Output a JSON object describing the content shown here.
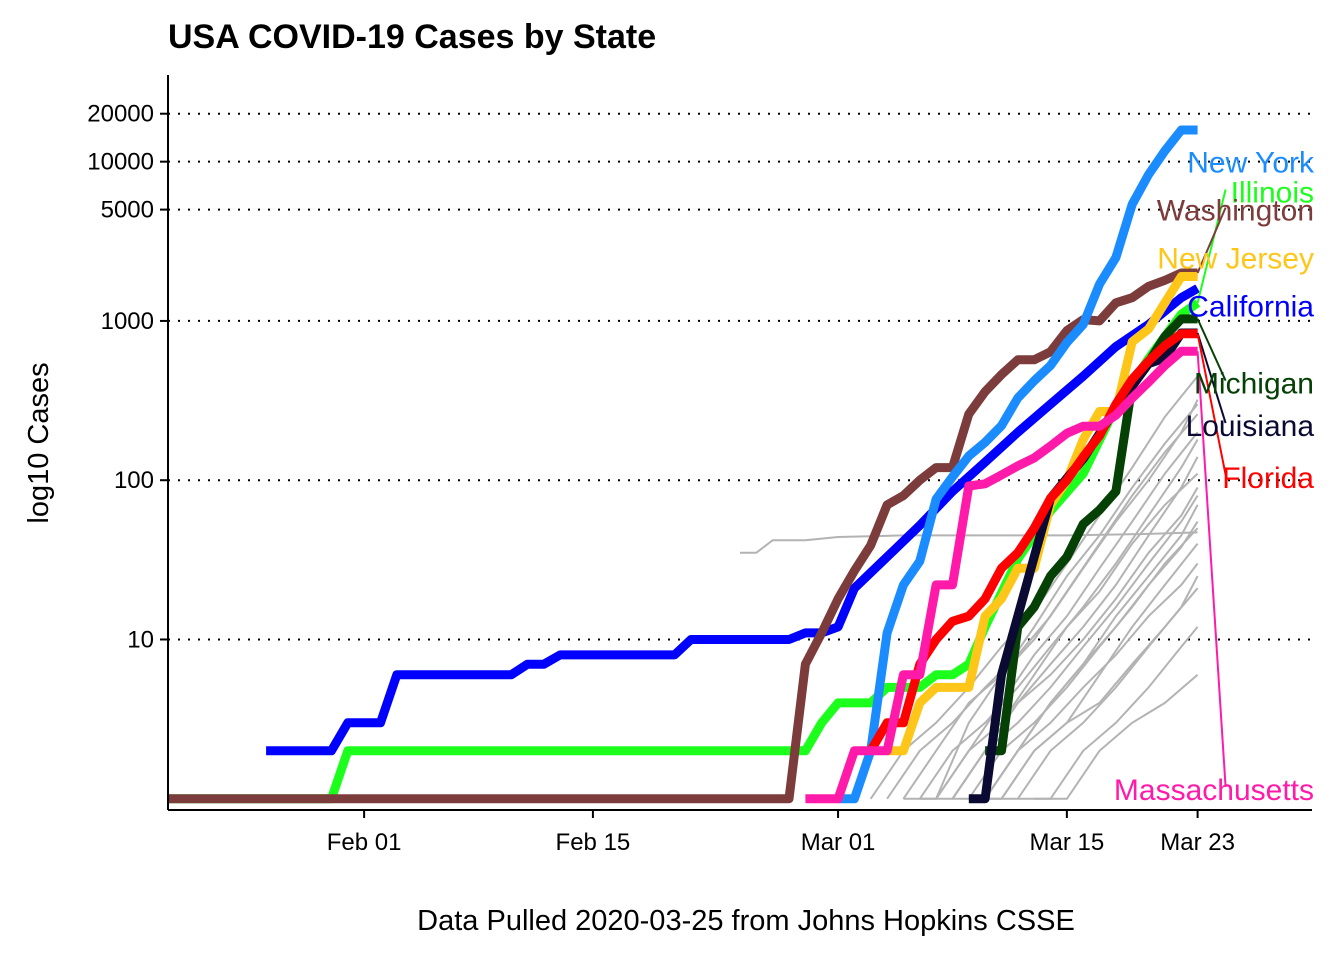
{
  "chart_data": {
    "type": "line",
    "title": "USA COVID-19 Cases by State",
    "xlabel": "Data Pulled 2020-03-25 from Johns Hopkins CSSE",
    "ylabel": "log10 Cases",
    "y_scale": "log10",
    "ylim": [
      0.85,
      35000
    ],
    "xlim": [
      "2020-01-20",
      "2020-03-30"
    ],
    "y_ticks": [
      {
        "value": 10,
        "label": "10"
      },
      {
        "value": 100,
        "label": "100"
      },
      {
        "value": 1000,
        "label": "1000"
      },
      {
        "value": 5000,
        "label": "5000"
      },
      {
        "value": 10000,
        "label": "10000"
      },
      {
        "value": 20000,
        "label": "20000"
      }
    ],
    "x_ticks": [
      {
        "value": "2020-02-01",
        "label": "Feb 01"
      },
      {
        "value": "2020-02-15",
        "label": "Feb 15"
      },
      {
        "value": "2020-03-01",
        "label": "Mar 01"
      },
      {
        "value": "2020-03-15",
        "label": "Mar 15"
      },
      {
        "value": "2020-03-23",
        "label": "Mar 23"
      }
    ],
    "grid": "horizontal dotted at y ticks",
    "legend": "direct labels at right end of lines",
    "background_series_color": "#b3b3b3",
    "background_series": [
      {
        "x": [
          "2020-02-24",
          "2020-02-25",
          "2020-02-26",
          "2020-02-28",
          "2020-03-01",
          "2020-03-05",
          "2020-03-10",
          "2020-03-15",
          "2020-03-20",
          "2020-03-23"
        ],
        "values": [
          35,
          35,
          42,
          42,
          44,
          45,
          45,
          45,
          46,
          47
        ]
      },
      {
        "x": [
          "2020-03-03",
          "2020-03-05",
          "2020-03-07",
          "2020-03-09",
          "2020-03-11",
          "2020-03-13",
          "2020-03-15",
          "2020-03-17",
          "2020-03-19",
          "2020-03-21",
          "2020-03-23"
        ],
        "values": [
          1,
          2,
          3,
          5,
          9,
          15,
          30,
          60,
          120,
          250,
          450
        ]
      },
      {
        "x": [
          "2020-03-04",
          "2020-03-06",
          "2020-03-08",
          "2020-03-10",
          "2020-03-12",
          "2020-03-14",
          "2020-03-16",
          "2020-03-18",
          "2020-03-20",
          "2020-03-22",
          "2020-03-23"
        ],
        "values": [
          1,
          2,
          3,
          5,
          8,
          14,
          28,
          55,
          100,
          200,
          320
        ]
      },
      {
        "x": [
          "2020-03-05",
          "2020-03-07",
          "2020-03-09",
          "2020-03-11",
          "2020-03-13",
          "2020-03-15",
          "2020-03-17",
          "2020-03-19",
          "2020-03-21",
          "2020-03-23"
        ],
        "values": [
          1,
          2,
          4,
          6,
          10,
          20,
          40,
          80,
          150,
          260
        ]
      },
      {
        "x": [
          "2020-03-06",
          "2020-03-08",
          "2020-03-10",
          "2020-03-12",
          "2020-03-14",
          "2020-03-16",
          "2020-03-18",
          "2020-03-20",
          "2020-03-22",
          "2020-03-23"
        ],
        "values": [
          1,
          2,
          3,
          5,
          9,
          16,
          30,
          60,
          120,
          180
        ]
      },
      {
        "x": [
          "2020-03-06",
          "2020-03-08",
          "2020-03-10",
          "2020-03-12",
          "2020-03-14",
          "2020-03-16",
          "2020-03-18",
          "2020-03-20",
          "2020-03-22",
          "2020-03-23"
        ],
        "values": [
          1,
          1,
          2,
          4,
          7,
          12,
          22,
          45,
          90,
          140
        ]
      },
      {
        "x": [
          "2020-03-07",
          "2020-03-09",
          "2020-03-11",
          "2020-03-13",
          "2020-03-15",
          "2020-03-17",
          "2020-03-19",
          "2020-03-21",
          "2020-03-23"
        ],
        "values": [
          1,
          2,
          3,
          6,
          12,
          20,
          40,
          70,
          110
        ]
      },
      {
        "x": [
          "2020-03-08",
          "2020-03-10",
          "2020-03-12",
          "2020-03-14",
          "2020-03-16",
          "2020-03-18",
          "2020-03-20",
          "2020-03-22",
          "2020-03-23"
        ],
        "values": [
          1,
          2,
          4,
          6,
          10,
          18,
          35,
          60,
          90
        ]
      },
      {
        "x": [
          "2020-03-08",
          "2020-03-10",
          "2020-03-12",
          "2020-03-14",
          "2020-03-16",
          "2020-03-18",
          "2020-03-20",
          "2020-03-22",
          "2020-03-23"
        ],
        "values": [
          1,
          1,
          2,
          4,
          7,
          14,
          25,
          45,
          70
        ]
      },
      {
        "x": [
          "2020-03-09",
          "2020-03-11",
          "2020-03-13",
          "2020-03-15",
          "2020-03-17",
          "2020-03-19",
          "2020-03-21",
          "2020-03-23"
        ],
        "values": [
          1,
          2,
          3,
          5,
          9,
          16,
          30,
          50
        ]
      },
      {
        "x": [
          "2020-03-09",
          "2020-03-11",
          "2020-03-13",
          "2020-03-15",
          "2020-03-17",
          "2020-03-19",
          "2020-03-21",
          "2020-03-23"
        ],
        "values": [
          1,
          1,
          2,
          3,
          6,
          12,
          22,
          40
        ]
      },
      {
        "x": [
          "2020-03-10",
          "2020-03-12",
          "2020-03-14",
          "2020-03-16",
          "2020-03-18",
          "2020-03-20",
          "2020-03-22",
          "2020-03-23"
        ],
        "values": [
          1,
          2,
          3,
          5,
          8,
          14,
          22,
          30
        ]
      },
      {
        "x": [
          "2020-03-10",
          "2020-03-12",
          "2020-03-14",
          "2020-03-16",
          "2020-03-18",
          "2020-03-20",
          "2020-03-22",
          "2020-03-23"
        ],
        "values": [
          1,
          1,
          2,
          3,
          5,
          9,
          16,
          25
        ]
      },
      {
        "x": [
          "2020-03-11",
          "2020-03-13",
          "2020-03-15",
          "2020-03-17",
          "2020-03-19",
          "2020-03-21",
          "2020-03-23"
        ],
        "values": [
          1,
          2,
          3,
          4,
          7,
          12,
          21
        ]
      },
      {
        "x": [
          "2020-03-12",
          "2020-03-14",
          "2020-03-16",
          "2020-03-18",
          "2020-03-20",
          "2020-03-22",
          "2020-03-23"
        ],
        "values": [
          1,
          1,
          2,
          3,
          5,
          9,
          12
        ]
      },
      {
        "x": [
          "2020-03-13",
          "2020-03-15",
          "2020-03-17",
          "2020-03-19",
          "2020-03-21",
          "2020-03-23"
        ],
        "values": [
          1,
          1,
          2,
          3,
          4,
          6
        ]
      },
      {
        "x": [
          "2020-03-07",
          "2020-03-09",
          "2020-03-11",
          "2020-03-13",
          "2020-03-15",
          "2020-03-17",
          "2020-03-19",
          "2020-03-21",
          "2020-03-23"
        ],
        "values": [
          1,
          2,
          4,
          8,
          14,
          28,
          55,
          110,
          200
        ]
      },
      {
        "x": [
          "2020-03-05",
          "2020-03-07",
          "2020-03-09",
          "2020-03-11",
          "2020-03-13",
          "2020-03-15",
          "2020-03-17",
          "2020-03-19",
          "2020-03-21",
          "2020-03-23"
        ],
        "values": [
          1,
          1,
          3,
          6,
          12,
          25,
          45,
          90,
          170,
          300
        ]
      },
      {
        "x": [
          "2020-03-08",
          "2020-03-10",
          "2020-03-12",
          "2020-03-14",
          "2020-03-16",
          "2020-03-18",
          "2020-03-20",
          "2020-03-22",
          "2020-03-23"
        ],
        "values": [
          1,
          2,
          3,
          5,
          9,
          16,
          30,
          55,
          80
        ]
      },
      {
        "x": [
          "2020-03-10",
          "2020-03-12",
          "2020-03-14",
          "2020-03-16",
          "2020-03-18",
          "2020-03-20",
          "2020-03-22",
          "2020-03-23"
        ],
        "values": [
          1,
          2,
          4,
          7,
          12,
          22,
          38,
          55
        ]
      }
    ],
    "series": [
      {
        "name": "California",
        "color": "#0000ff",
        "x": [
          "2020-01-26",
          "2020-01-30",
          "2020-01-31",
          "2020-02-02",
          "2020-02-03",
          "2020-02-10",
          "2020-02-11",
          "2020-02-12",
          "2020-02-13",
          "2020-02-20",
          "2020-02-21",
          "2020-02-27",
          "2020-02-28",
          "2020-02-29",
          "2020-03-01",
          "2020-03-02",
          "2020-03-04",
          "2020-03-06",
          "2020-03-08",
          "2020-03-10",
          "2020-03-12",
          "2020-03-14",
          "2020-03-16",
          "2020-03-18",
          "2020-03-20",
          "2020-03-22",
          "2020-03-23"
        ],
        "values": [
          2,
          2,
          3,
          3,
          6,
          6,
          7,
          7,
          8,
          8,
          10,
          10,
          11,
          11,
          12,
          21,
          33,
          52,
          85,
          130,
          200,
          300,
          450,
          690,
          950,
          1400,
          1600
        ]
      },
      {
        "name": "Illinois",
        "color": "#1cff1c",
        "x": [
          "2020-01-20",
          "2020-01-30",
          "2020-01-31",
          "2020-02-28",
          "2020-02-29",
          "2020-03-01",
          "2020-03-03",
          "2020-03-04",
          "2020-03-06",
          "2020-03-07",
          "2020-03-08",
          "2020-03-09",
          "2020-03-10",
          "2020-03-12",
          "2020-03-14",
          "2020-03-16",
          "2020-03-18",
          "2020-03-20",
          "2020-03-22",
          "2020-03-23"
        ],
        "values": [
          1,
          1,
          2,
          2,
          3,
          4,
          4,
          5,
          5,
          6,
          6,
          7,
          12,
          32,
          64,
          110,
          290,
          580,
          1100,
          1300
        ]
      },
      {
        "name": "Washington",
        "color": "#7d3c3c",
        "x": [
          "2020-01-20",
          "2020-02-27",
          "2020-02-28",
          "2020-02-29",
          "2020-03-01",
          "2020-03-02",
          "2020-03-03",
          "2020-03-04",
          "2020-03-05",
          "2020-03-06",
          "2020-03-07",
          "2020-03-08",
          "2020-03-09",
          "2020-03-10",
          "2020-03-11",
          "2020-03-12",
          "2020-03-13",
          "2020-03-14",
          "2020-03-15",
          "2020-03-16",
          "2020-03-17",
          "2020-03-18",
          "2020-03-19",
          "2020-03-20",
          "2020-03-21",
          "2020-03-22",
          "2020-03-23"
        ],
        "values": [
          1,
          1,
          7,
          11,
          18,
          27,
          39,
          70,
          80,
          100,
          120,
          120,
          260,
          360,
          460,
          570,
          570,
          640,
          870,
          1020,
          1000,
          1300,
          1400,
          1650,
          1800,
          2000,
          2000
        ]
      },
      {
        "name": "New York",
        "color": "#1a8cff",
        "x": [
          "2020-03-01",
          "2020-03-02",
          "2020-03-03",
          "2020-03-04",
          "2020-03-05",
          "2020-03-06",
          "2020-03-07",
          "2020-03-08",
          "2020-03-09",
          "2020-03-10",
          "2020-03-11",
          "2020-03-12",
          "2020-03-13",
          "2020-03-14",
          "2020-03-15",
          "2020-03-16",
          "2020-03-17",
          "2020-03-18",
          "2020-03-19",
          "2020-03-20",
          "2020-03-21",
          "2020-03-22",
          "2020-03-23"
        ],
        "values": [
          1,
          1,
          2,
          11,
          22,
          31,
          76,
          105,
          142,
          173,
          220,
          328,
          421,
          525,
          732,
          950,
          1700,
          2500,
          5400,
          8300,
          11700,
          15800,
          15800
        ]
      },
      {
        "name": "New Jersey",
        "color": "#ffc61a",
        "x": [
          "2020-03-04",
          "2020-03-05",
          "2020-03-06",
          "2020-03-07",
          "2020-03-08",
          "2020-03-09",
          "2020-03-10",
          "2020-03-11",
          "2020-03-12",
          "2020-03-13",
          "2020-03-14",
          "2020-03-15",
          "2020-03-16",
          "2020-03-17",
          "2020-03-18",
          "2020-03-19",
          "2020-03-20",
          "2020-03-21",
          "2020-03-22",
          "2020-03-23"
        ],
        "values": [
          2,
          2,
          4,
          5,
          5,
          5,
          14,
          18,
          28,
          28,
          70,
          100,
          180,
          270,
          270,
          740,
          890,
          1300,
          1900,
          1900
        ]
      },
      {
        "name": "Michigan",
        "color": "#054005",
        "x": [
          "2020-03-10",
          "2020-03-11",
          "2020-03-12",
          "2020-03-13",
          "2020-03-14",
          "2020-03-15",
          "2020-03-16",
          "2020-03-17",
          "2020-03-18",
          "2020-03-19",
          "2020-03-20",
          "2020-03-21",
          "2020-03-22",
          "2020-03-23"
        ],
        "values": [
          2,
          2,
          12,
          16,
          25,
          33,
          53,
          65,
          85,
          400,
          550,
          800,
          1030,
          1030
        ]
      },
      {
        "name": "Louisiana",
        "color": "#0a0a33",
        "x": [
          "2020-03-09",
          "2020-03-10",
          "2020-03-11",
          "2020-03-12",
          "2020-03-13",
          "2020-03-14",
          "2020-03-15",
          "2020-03-16",
          "2020-03-17",
          "2020-03-18",
          "2020-03-19",
          "2020-03-20",
          "2020-03-21",
          "2020-03-22",
          "2020-03-23"
        ],
        "values": [
          1,
          1,
          6,
          14,
          33,
          77,
          103,
          136,
          196,
          280,
          390,
          540,
          585,
          840,
          840
        ]
      },
      {
        "name": "Florida",
        "color": "#ff0000",
        "x": [
          "2020-03-03",
          "2020-03-04",
          "2020-03-05",
          "2020-03-06",
          "2020-03-07",
          "2020-03-08",
          "2020-03-09",
          "2020-03-10",
          "2020-03-11",
          "2020-03-12",
          "2020-03-13",
          "2020-03-14",
          "2020-03-15",
          "2020-03-16",
          "2020-03-17",
          "2020-03-18",
          "2020-03-19",
          "2020-03-20",
          "2020-03-21",
          "2020-03-22",
          "2020-03-23"
        ],
        "values": [
          2,
          3,
          3,
          7,
          10,
          13,
          14,
          18,
          28,
          35,
          50,
          77,
          100,
          140,
          190,
          300,
          430,
          560,
          700,
          830,
          830
        ]
      },
      {
        "name": "Massachusetts",
        "color": "#ff1aaa",
        "x": [
          "2020-02-28",
          "2020-03-01",
          "2020-03-02",
          "2020-03-03",
          "2020-03-04",
          "2020-03-05",
          "2020-03-06",
          "2020-03-07",
          "2020-03-08",
          "2020-03-09",
          "2020-03-10",
          "2020-03-11",
          "2020-03-12",
          "2020-03-13",
          "2020-03-14",
          "2020-03-15",
          "2020-03-16",
          "2020-03-17",
          "2020-03-18",
          "2020-03-19",
          "2020-03-20",
          "2020-03-21",
          "2020-03-22",
          "2020-03-23"
        ],
        "values": [
          1,
          1,
          2,
          2,
          2,
          6,
          6,
          22,
          22,
          92,
          95,
          108,
          123,
          138,
          164,
          197,
          218,
          218,
          256,
          328,
          413,
          525,
          646,
          646
        ]
      }
    ],
    "labels": [
      {
        "series": "New York",
        "text": "New York",
        "value": 10000,
        "connector": false
      },
      {
        "series": "Illinois",
        "text": "Illinois",
        "value": 6500,
        "connector": true
      },
      {
        "series": "Washington",
        "text": "Washington",
        "value": 5000,
        "connector": true
      },
      {
        "series": "New Jersey",
        "text": "New Jersey",
        "value": 2500,
        "connector": false
      },
      {
        "series": "California",
        "text": "California",
        "value": 1250,
        "connector": false
      },
      {
        "series": "Michigan",
        "text": "Michigan",
        "value": 410,
        "connector": true
      },
      {
        "series": "Louisiana",
        "text": "Louisiana",
        "value": 222,
        "connector": true
      },
      {
        "series": "Florida",
        "text": "Florida",
        "value": 105,
        "connector": true
      },
      {
        "series": "Massachusetts",
        "text": "Massachusetts",
        "value": 1.15,
        "connector": true
      }
    ]
  }
}
